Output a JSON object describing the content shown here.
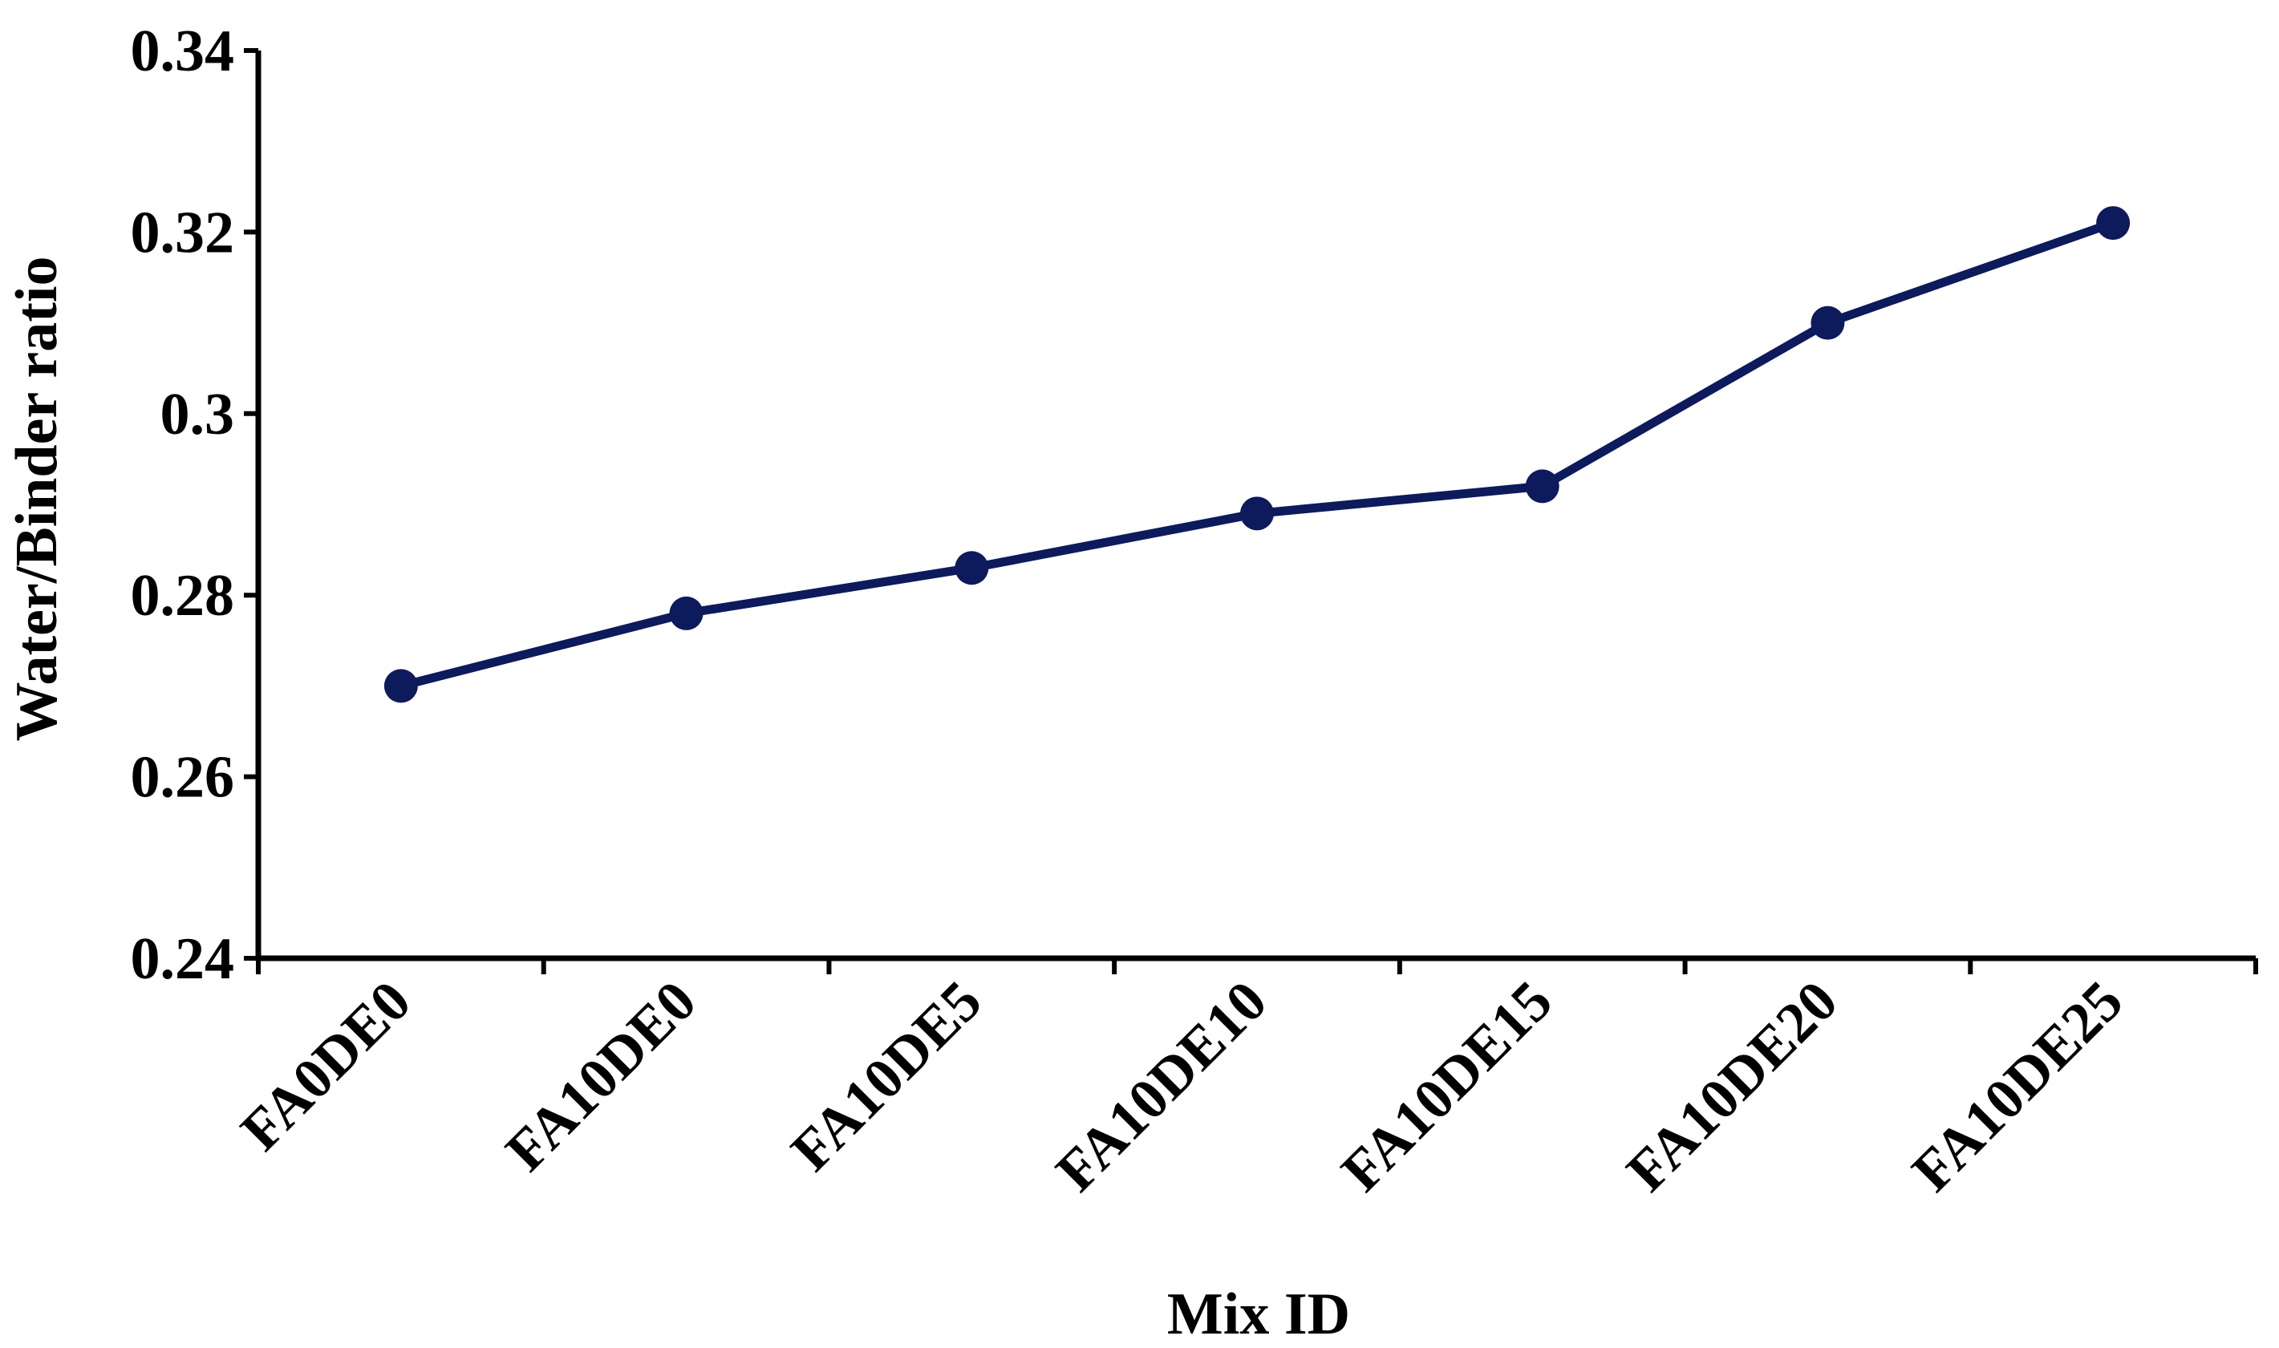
{
  "chart_data": {
    "type": "line",
    "xlabel": "Mix ID",
    "ylabel": "Water/Binder ratio",
    "categories": [
      "FA0DE0",
      "FA10DE0",
      "FA10DE5",
      "FA10DE10",
      "FA10DE15",
      "FA10DE20",
      "FA10DE25"
    ],
    "series": [
      {
        "values": [
          0.27,
          0.278,
          0.283,
          0.289,
          0.292,
          0.31,
          0.321
        ]
      }
    ],
    "ylim": [
      0.24,
      0.34
    ],
    "yticks": [
      0.24,
      0.26,
      0.28,
      0.3,
      0.32,
      0.34
    ],
    "ytick_labels": [
      "0.24",
      "0.26",
      "0.28",
      "0.3",
      "0.32",
      "0.34"
    ],
    "grid": false,
    "legend": "none",
    "colors": {
      "series": "#0d1a5c",
      "axis": "#000000"
    }
  }
}
